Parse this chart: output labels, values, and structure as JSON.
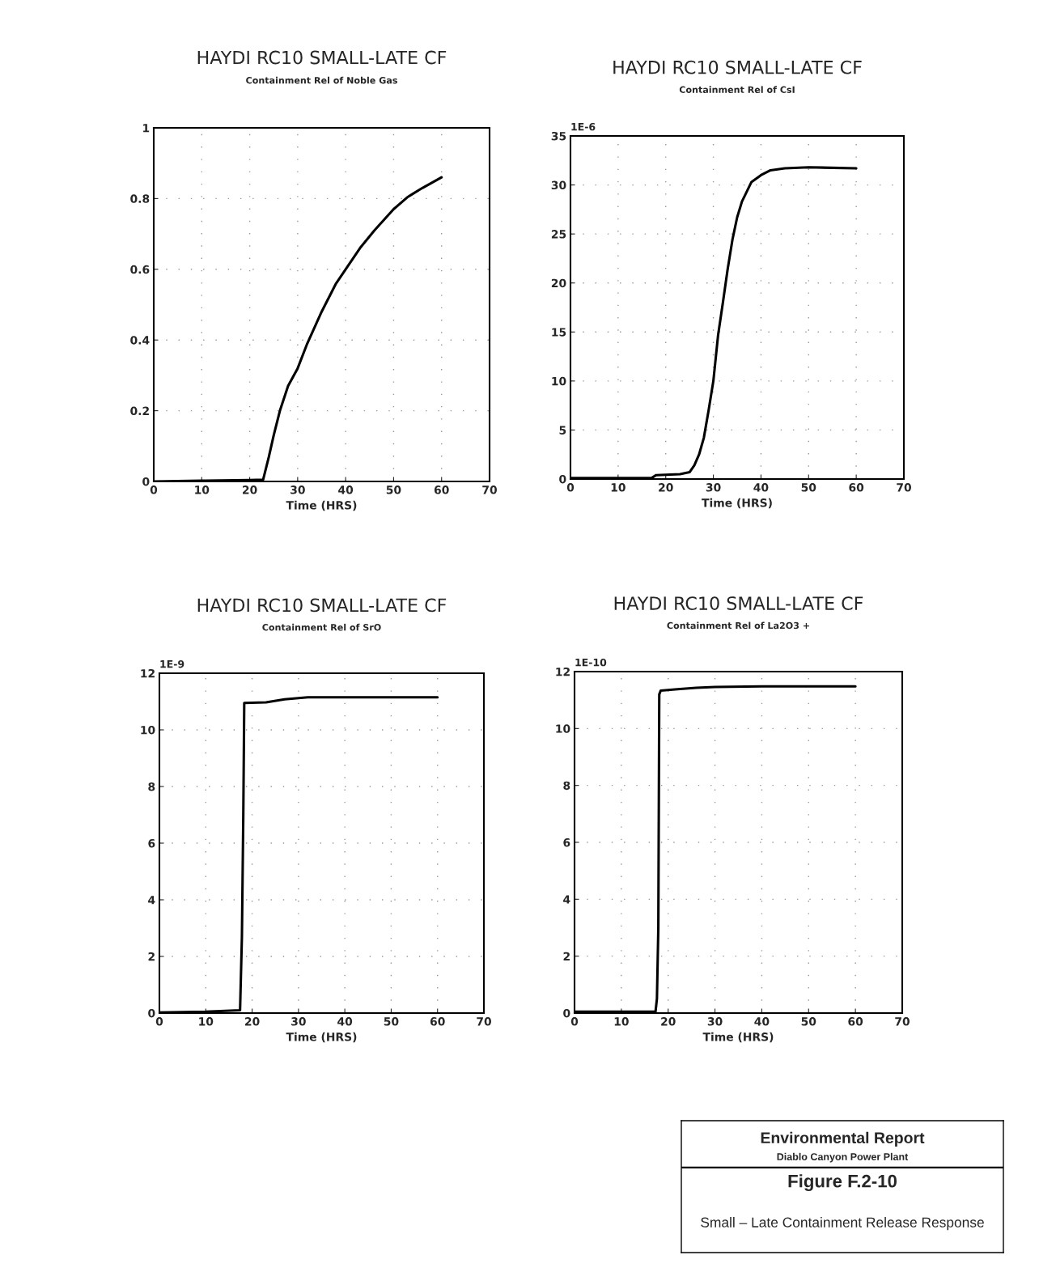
{
  "chart_data": [
    {
      "type": "line",
      "title": "HAYDI RC10 SMALL-LATE CF",
      "subtitle": "Containment Rel of Noble Gas",
      "xlabel": "Time (HRS)",
      "xlim": [
        0,
        70
      ],
      "xticks": [
        0,
        10,
        20,
        30,
        40,
        50,
        60,
        70
      ],
      "ylim": [
        0,
        1
      ],
      "yticks": [
        0,
        0.2,
        0.4,
        0.6,
        0.8,
        1
      ],
      "grid": true,
      "line_style": "solid",
      "series": [
        {
          "color": "#000000",
          "x": [
            0,
            10,
            20,
            22.8,
            24,
            25,
            26.3,
            28,
            30,
            32,
            35,
            38,
            40,
            43,
            46,
            50,
            53,
            56,
            60
          ],
          "values": [
            0,
            0.002,
            0.004,
            0.005,
            0.07,
            0.13,
            0.2,
            0.27,
            0.32,
            0.39,
            0.48,
            0.56,
            0.6,
            0.66,
            0.71,
            0.77,
            0.805,
            0.83,
            0.86
          ]
        }
      ]
    },
    {
      "type": "line",
      "title": "HAYDI RC10 SMALL-LATE CF",
      "subtitle": "Containment Rel of CsI",
      "xlabel": "Time (HRS)",
      "ylabel": "1E-6",
      "xlim": [
        0,
        70
      ],
      "xticks": [
        0,
        10,
        20,
        30,
        40,
        50,
        60,
        70
      ],
      "ylim": [
        0,
        35
      ],
      "yticks": [
        0,
        5,
        10,
        15,
        20,
        25,
        30,
        35
      ],
      "grid": true,
      "line_style": "solid",
      "series": [
        {
          "color": "#000000",
          "x": [
            0,
            10,
            17,
            18,
            23,
            24,
            25,
            26,
            27,
            28,
            29,
            30,
            31,
            32,
            33,
            34,
            35,
            36,
            38,
            40,
            42,
            45,
            50,
            60
          ],
          "values": [
            0.1,
            0.1,
            0.1,
            0.4,
            0.5,
            0.6,
            0.7,
            1.4,
            2.5,
            4.2,
            7,
            10,
            14.7,
            18,
            21.4,
            24.4,
            26.7,
            28.3,
            30.3,
            31,
            31.5,
            31.7,
            31.8,
            31.7
          ]
        }
      ]
    },
    {
      "type": "line",
      "title": "HAYDI RC10 SMALL-LATE CF",
      "subtitle": "Containment Rel of SrO",
      "xlabel": "Time (HRS)",
      "ylabel": "1E-9",
      "xlim": [
        0,
        70
      ],
      "xticks": [
        0,
        10,
        20,
        30,
        40,
        50,
        60,
        70
      ],
      "ylim": [
        0,
        12
      ],
      "yticks": [
        0,
        2,
        4,
        6,
        8,
        10,
        12
      ],
      "grid": true,
      "line_style": "solid",
      "series": [
        {
          "color": "#000000",
          "x": [
            0,
            10,
            17.4,
            17.8,
            18.1,
            18.3,
            23,
            27,
            32,
            40,
            60
          ],
          "values": [
            0.02,
            0.05,
            0.1,
            2.7,
            7,
            10.95,
            10.97,
            11.08,
            11.15,
            11.15,
            11.15
          ]
        }
      ]
    },
    {
      "type": "line",
      "title": "HAYDI RC10 SMALL-LATE CF",
      "subtitle": "Containment Rel of La2O3 +",
      "xlabel": "Time (HRS)",
      "ylabel": "1E-10",
      "xlim": [
        0,
        70
      ],
      "xticks": [
        0,
        10,
        20,
        30,
        40,
        50,
        60,
        70
      ],
      "ylim": [
        0,
        12
      ],
      "yticks": [
        0,
        2,
        4,
        6,
        8,
        10,
        12
      ],
      "grid": true,
      "line_style": "solid",
      "series": [
        {
          "color": "#000000",
          "x": [
            0,
            10,
            17.3,
            17.6,
            17.9,
            18.1,
            18.4,
            22,
            26,
            30,
            40,
            60
          ],
          "values": [
            0.05,
            0.05,
            0.05,
            0.5,
            3,
            11.2,
            11.33,
            11.38,
            11.43,
            11.46,
            11.48,
            11.48
          ]
        }
      ]
    },
    {
      "type": "other",
      "title": "Environmental Report",
      "subtitle": "Diablo Canyon Power Plant",
      "annotations": [
        "Figure F.2-10",
        "Small – Late Containment Release Response"
      ]
    }
  ]
}
